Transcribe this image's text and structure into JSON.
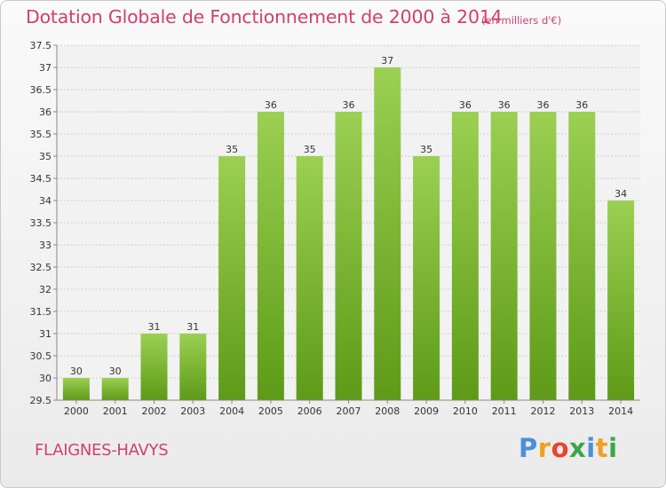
{
  "chart_data": {
    "type": "bar",
    "title": "Dotation Globale de Fonctionnement de 2000 à 2014",
    "unit_note": "(en milliers d'€)",
    "categories": [
      "2000",
      "2001",
      "2002",
      "2003",
      "2004",
      "2005",
      "2006",
      "2007",
      "2008",
      "2009",
      "2010",
      "2011",
      "2012",
      "2013",
      "2014"
    ],
    "values": [
      30,
      30,
      31,
      31,
      35,
      36,
      35,
      36,
      37,
      35,
      36,
      36,
      36,
      36,
      34
    ],
    "ylim": [
      29.5,
      37.5
    ],
    "yticks": [
      "29.5",
      "30",
      "30.5",
      "31",
      "31.5",
      "32",
      "32.5",
      "33",
      "33.5",
      "34",
      "34.5",
      "35",
      "35.5",
      "36",
      "36.5",
      "37",
      "37.5"
    ],
    "grid": true,
    "xlabel": "",
    "ylabel": "",
    "colors": {
      "bar_top": "#9bd052",
      "bar_bottom": "#5e9a18",
      "title": "#d13f6f"
    }
  },
  "footer": {
    "commune": "FLAIGNES-HAVYS",
    "logo_text": "Proxiti",
    "logo_letters": [
      "P",
      "r",
      "o",
      "x",
      "i",
      "t",
      "i"
    ],
    "logo_colors": [
      "#4a90d9",
      "#f0a020",
      "#e8452f",
      "#3aa64a",
      "#4a90d9",
      "#f0a020",
      "#3aa64a"
    ]
  }
}
